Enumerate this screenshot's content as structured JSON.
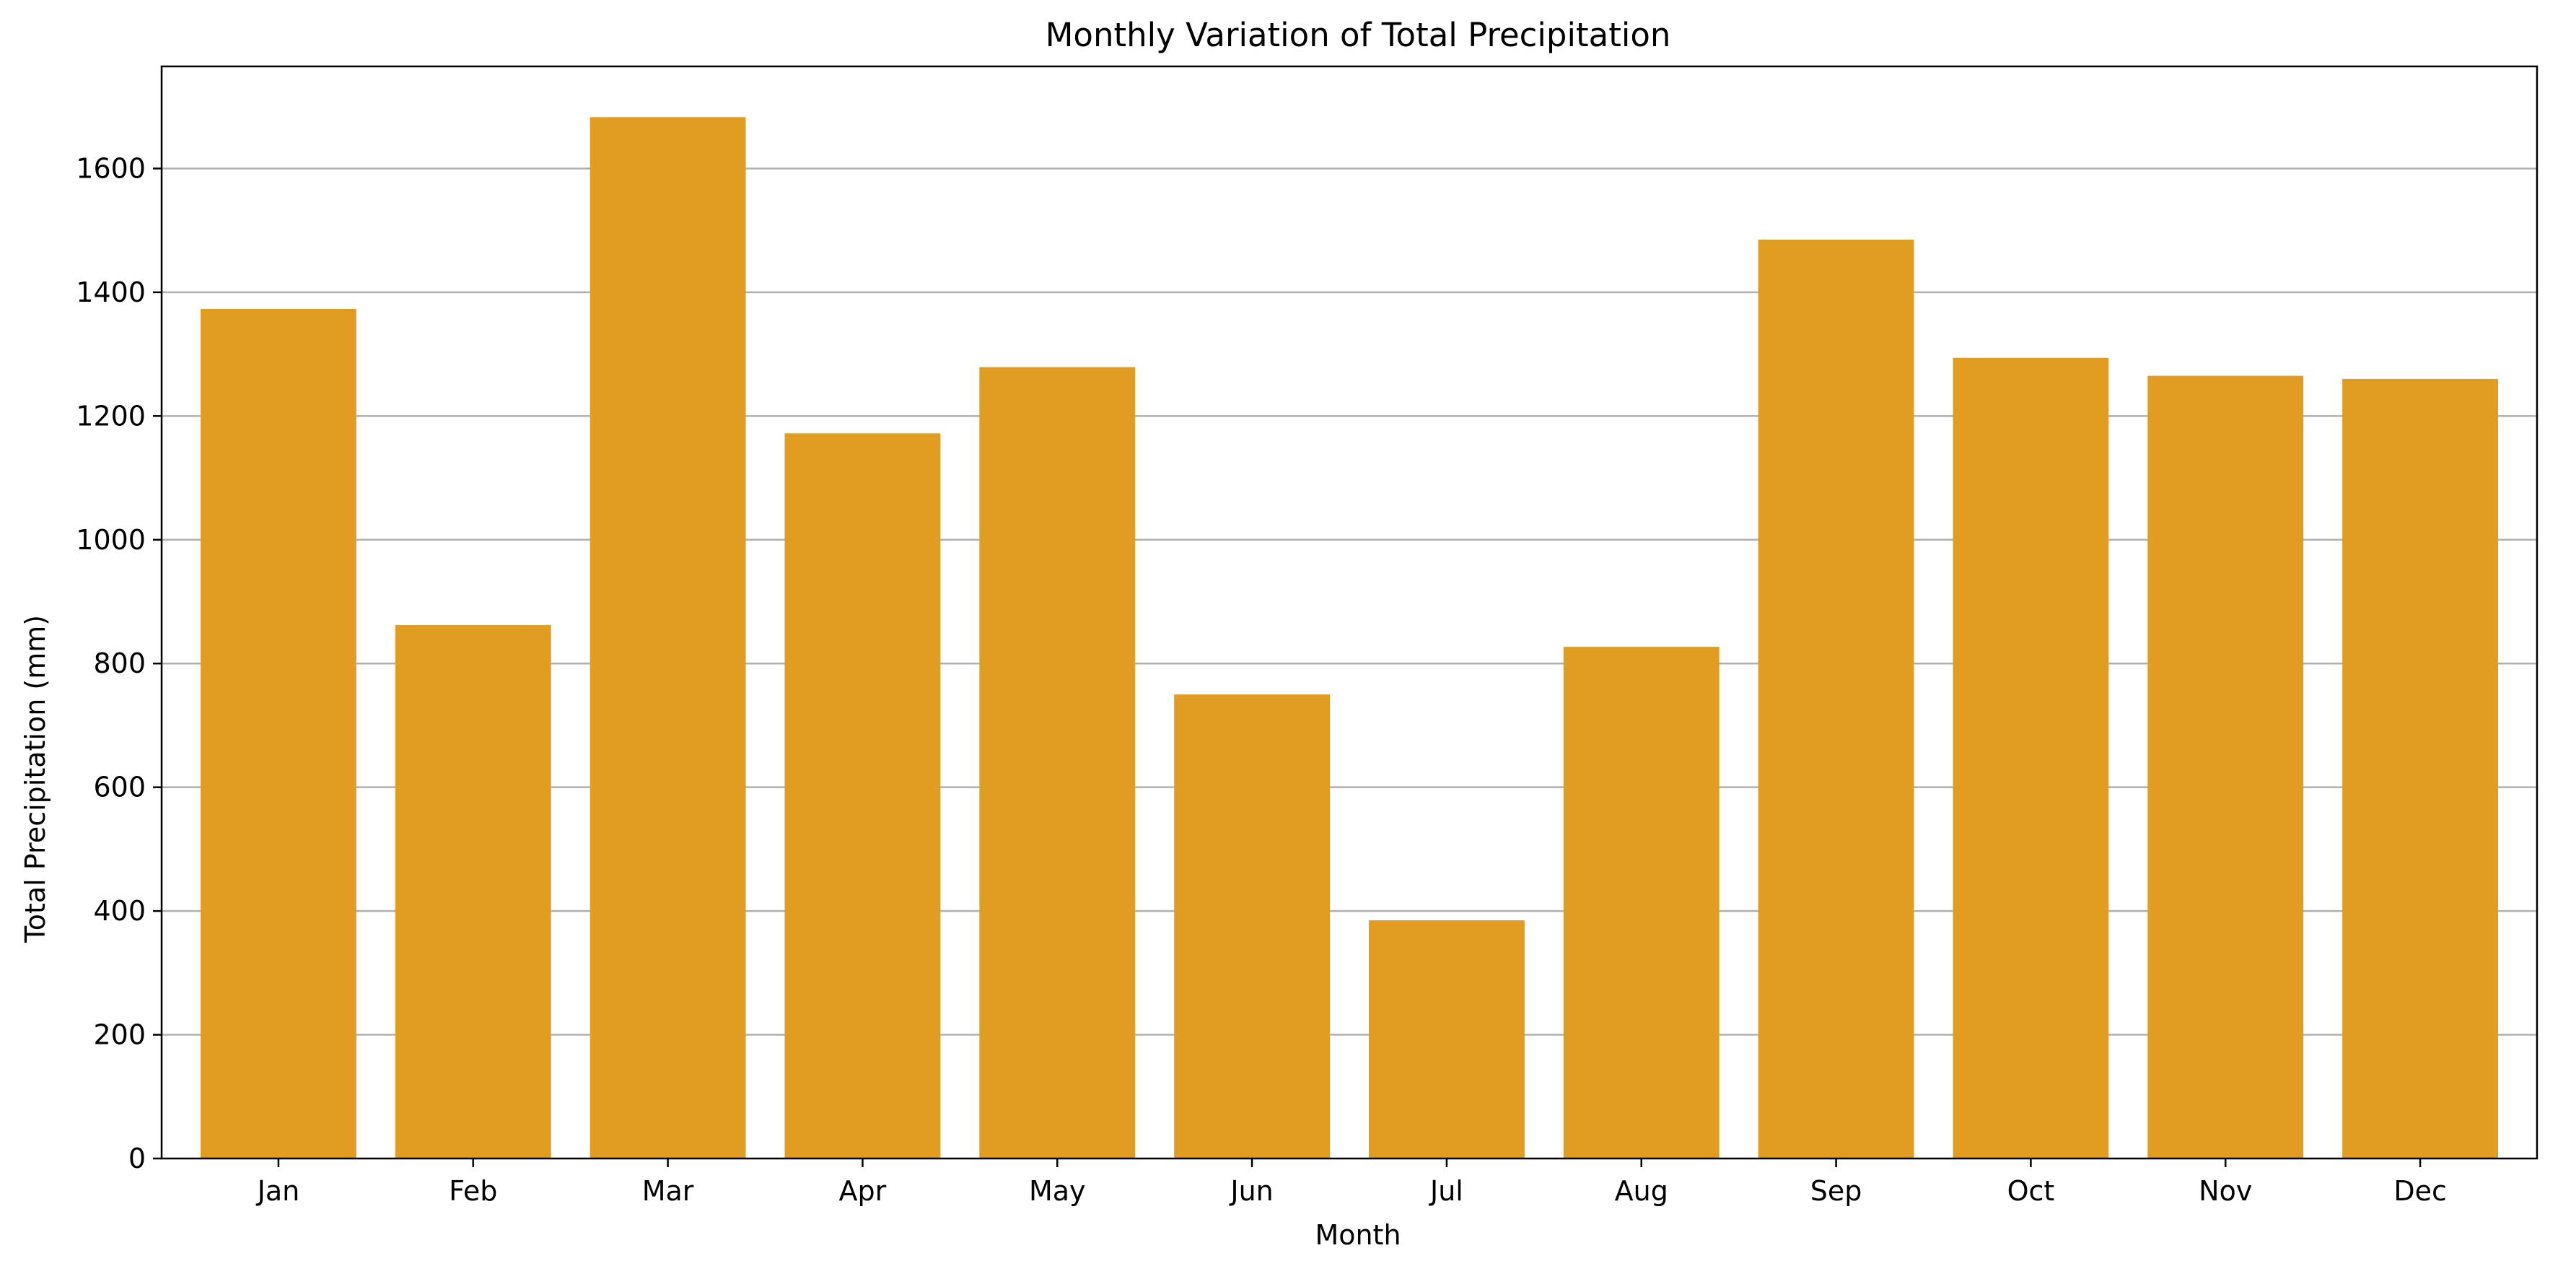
{
  "chart_data": {
    "type": "bar",
    "title": "Monthly Variation of Total Precipitation",
    "xlabel": "Month",
    "ylabel": "Total Precipitation (mm)",
    "categories": [
      "Jan",
      "Feb",
      "Mar",
      "Apr",
      "May",
      "Jun",
      "Jul",
      "Aug",
      "Sep",
      "Oct",
      "Nov",
      "Dec"
    ],
    "values": [
      1373,
      862,
      1683,
      1172,
      1279,
      750,
      385,
      827,
      1485,
      1294,
      1265,
      1260
    ],
    "ylim": [
      0,
      1765
    ],
    "yticks": [
      0,
      200,
      400,
      600,
      800,
      1000,
      1200,
      1400,
      1600
    ],
    "ytick_labels": [
      "0",
      "200",
      "400",
      "600",
      "800",
      "1000",
      "1200",
      "1400",
      "1600"
    ],
    "grid": "y",
    "bar_color": "#e09d21"
  }
}
